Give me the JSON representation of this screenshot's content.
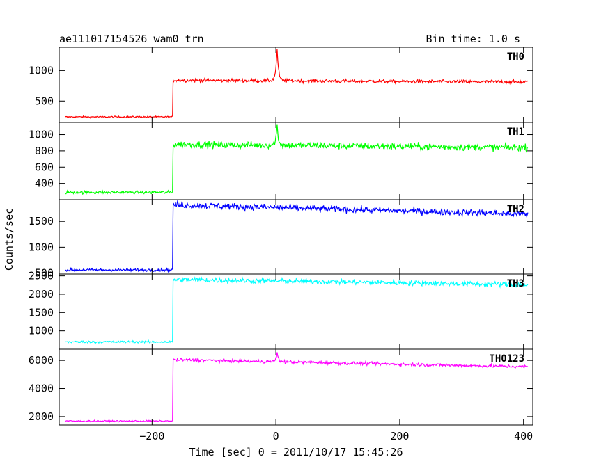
{
  "chart_data": {
    "type": "line",
    "title": "ae111017154526_wam0_trn",
    "bin_time": "Bin time: 1.0 s",
    "xlabel": "Time [sec] 0 = 2011/10/17 15:45:26",
    "ylabel": "Counts/sec",
    "xlim": [
      -350,
      415
    ],
    "xticks": [
      -200,
      0,
      200,
      400
    ],
    "xtick_labels": [
      "−200",
      "0",
      "200",
      "400"
    ],
    "panels": [
      {
        "name": "TH0",
        "color": "#ff0000",
        "ylim": [
          150,
          1380
        ],
        "yticks": [
          500,
          1000
        ],
        "pre_level": 240,
        "post_start": 840,
        "post_end": 810,
        "noise": 20,
        "peak": 1360,
        "peak_time": 2
      },
      {
        "name": "TH1",
        "color": "#00ff00",
        "ylim": [
          200,
          1150
        ],
        "yticks": [
          400,
          600,
          800,
          1000
        ],
        "pre_level": 290,
        "post_start": 880,
        "post_end": 840,
        "noise": 30,
        "peak": 1110,
        "peak_time": 2
      },
      {
        "name": "TH2",
        "color": "#0000ff",
        "ylim": [
          480,
          1920
        ],
        "yticks": [
          500,
          1000,
          1500
        ],
        "pre_level": 560,
        "post_start": 1820,
        "post_end": 1640,
        "noise": 45,
        "peak": 0,
        "peak_time": 2
      },
      {
        "name": "TH3",
        "color": "#00ffff",
        "ylim": [
          500,
          2550
        ],
        "yticks": [
          1000,
          1500,
          2000,
          2500
        ],
        "pre_level": 700,
        "post_start": 2400,
        "post_end": 2260,
        "noise": 50,
        "peak": 0,
        "peak_time": 2
      },
      {
        "name": "TH0123",
        "color": "#ff00ff",
        "ylim": [
          1400,
          6800
        ],
        "yticks": [
          2000,
          4000,
          6000
        ],
        "pre_level": 1680,
        "post_start": 6050,
        "post_end": 5550,
        "noise": 80,
        "peak": 6500,
        "peak_time": 2
      }
    ],
    "step_time": -166,
    "grid": false,
    "legend": "none"
  }
}
